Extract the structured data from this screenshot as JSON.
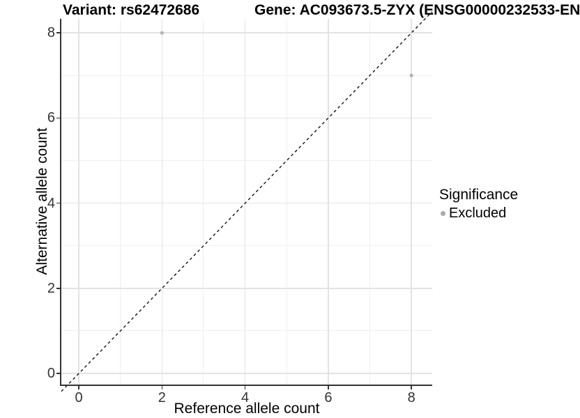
{
  "chart_data": {
    "type": "scatter",
    "title_left": "Variant: rs62472686",
    "title_right": "Gene: AC093673.5-ZYX (ENSG00000232533-EN",
    "xlabel": "Reference allele count",
    "ylabel": "Alternative allele count",
    "x_ticks": [
      0,
      2,
      4,
      6,
      8
    ],
    "y_ticks": [
      0,
      2,
      4,
      6,
      8
    ],
    "x_minor": [
      1,
      3,
      5,
      7
    ],
    "y_minor": [
      1,
      3,
      5,
      7
    ],
    "xlim": [
      -0.42,
      8.5
    ],
    "ylim": [
      -0.26,
      8.33
    ],
    "grid": "major+minor",
    "series": [
      {
        "name": "Excluded",
        "color": "#b4b4b4",
        "marker_radius": 2.6,
        "points": [
          [
            2,
            8
          ],
          [
            8,
            7
          ]
        ]
      }
    ],
    "reference_line": {
      "type": "identity",
      "slope": 1,
      "intercept": 0,
      "linetype": "dashed",
      "color": "#000000"
    },
    "legend": {
      "title": "Significance",
      "position": "right",
      "items": [
        {
          "label": "Excluded",
          "color": "#a9a9a9"
        }
      ]
    },
    "colors": {
      "axis_line": "#333333",
      "grid_major": "#e3e3e3",
      "grid_minor": "#efefef",
      "tick_text": "#333333",
      "background": "#ffffff"
    }
  }
}
